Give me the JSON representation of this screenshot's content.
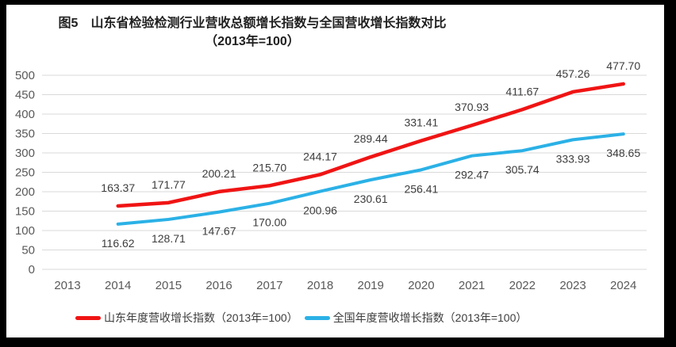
{
  "chart_data": {
    "type": "line",
    "title": "图5　山东省检验检测行业营收总额增长指数与全国营收增长指数对比",
    "subtitle": "（2013年=100）",
    "categories": [
      "2013",
      "2014",
      "2015",
      "2016",
      "2017",
      "2018",
      "2019",
      "2020",
      "2021",
      "2022",
      "2023",
      "2024"
    ],
    "series": [
      {
        "name": "山东年度营收增长指数（2013年=100）",
        "color": "#F01414",
        "values": [
          null,
          163.37,
          171.77,
          200.21,
          215.7,
          244.17,
          289.44,
          331.41,
          370.93,
          411.67,
          457.26,
          477.7
        ]
      },
      {
        "name": "全国年度营收增长指数（2013年=100）",
        "color": "#2BB1E6",
        "values": [
          null,
          116.62,
          128.71,
          147.67,
          170.0,
          200.96,
          230.61,
          256.41,
          292.47,
          305.74,
          333.93,
          348.65
        ]
      }
    ],
    "xlabel": "",
    "ylabel": "",
    "ylim": [
      0,
      500
    ],
    "ytick_step": 50,
    "grid": true,
    "grid_color": "#D9D9D9",
    "legend_position": "bottom"
  }
}
